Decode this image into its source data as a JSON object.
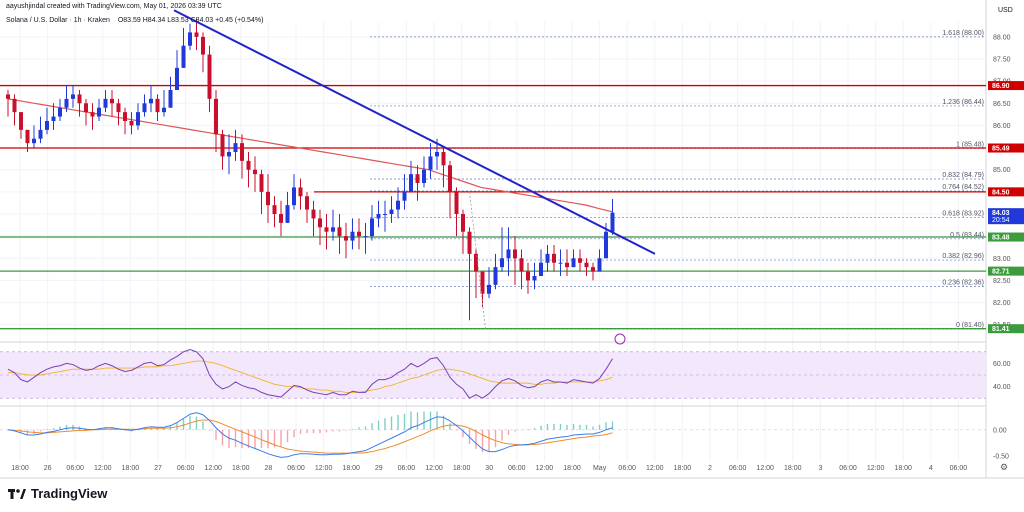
{
  "header": {
    "credit": "aayushjindal created with TradingView.com, May 01, 2026 03:39 UTC",
    "symbol": "Solana / U.S. Dollar · 1h · Kraken",
    "ohlc": "O83.59 H84.34 L83.53 C84.03 +0.45 (+0.54%)"
  },
  "brand": {
    "name": "TradingView",
    "icon": "tradingview-logo-icon"
  },
  "colors": {
    "up": "#2139d8",
    "down": "#c8102e",
    "ma": "#e05454",
    "trendline": "#2222cc",
    "support": "#3c9b3c",
    "resistance": "#d10000",
    "rsi": "#7b3fb5",
    "rsi_ma": "#f0b429",
    "macd": "#3d7de8",
    "signal": "#f08c2a",
    "hist": "#7ecfc4"
  },
  "chart_data": {
    "type": "candlestick",
    "title": "Solana / U.S. Dollar · 1h · Kraken",
    "y_axis_label": "USD",
    "ylim": [
      81.2,
      88.2
    ],
    "grid": true,
    "price_ticks": [
      "88.00",
      "87.50",
      "87.00",
      "86.50",
      "86.00",
      "85.50",
      "85.00",
      "84.50",
      "84.00",
      "83.50",
      "83.00",
      "82.50",
      "82.00",
      "81.50"
    ],
    "x_ticks": [
      "18:00",
      "26",
      "06:00",
      "12:00",
      "18:00",
      "27",
      "06:00",
      "12:00",
      "18:00",
      "28",
      "06:00",
      "12:00",
      "18:00",
      "29",
      "06:00",
      "12:00",
      "18:00",
      "30",
      "06:00",
      "12:00",
      "18:00",
      "May",
      "06:00",
      "12:00",
      "18:00",
      "2",
      "06:00",
      "12:00",
      "18:00",
      "3",
      "06:00",
      "12:00",
      "18:00",
      "4",
      "06:00"
    ],
    "closes": [
      86.6,
      86.3,
      85.9,
      85.6,
      85.7,
      85.9,
      86.1,
      86.2,
      86.4,
      86.6,
      86.7,
      86.5,
      86.3,
      86.2,
      86.4,
      86.6,
      86.5,
      86.3,
      86.1,
      86.0,
      86.3,
      86.5,
      86.6,
      86.3,
      86.4,
      86.8,
      87.3,
      87.8,
      88.1,
      88.0,
      87.6,
      86.6,
      85.8,
      85.3,
      85.4,
      85.6,
      85.2,
      85.0,
      84.9,
      84.5,
      84.2,
      84.0,
      83.8,
      84.2,
      84.6,
      84.4,
      84.1,
      83.9,
      83.7,
      83.6,
      83.7,
      83.5,
      83.4,
      83.6,
      83.5,
      83.5,
      83.9,
      84.0,
      84.0,
      84.1,
      84.3,
      84.5,
      84.9,
      84.7,
      85.0,
      85.3,
      85.4,
      85.1,
      84.5,
      84.0,
      83.6,
      83.1,
      82.7,
      82.2,
      82.4,
      82.8,
      83.0,
      83.2,
      83.0,
      82.7,
      82.5,
      82.6,
      82.9,
      83.1,
      82.9,
      82.9,
      82.8,
      83.0,
      82.9,
      82.8,
      82.7,
      83.0,
      83.6,
      84.03
    ],
    "highs": [
      86.8,
      86.7,
      86.3,
      85.9,
      86.0,
      86.2,
      86.4,
      86.5,
      86.6,
      86.9,
      86.9,
      86.8,
      86.6,
      86.5,
      86.6,
      86.8,
      86.8,
      86.6,
      86.4,
      86.3,
      86.5,
      86.7,
      86.9,
      86.7,
      86.8,
      87.1,
      87.7,
      88.2,
      88.3,
      88.4,
      88.1,
      87.8,
      86.8,
      85.9,
      85.8,
      85.9,
      85.8,
      85.4,
      85.3,
      85.0,
      84.9,
      84.4,
      84.3,
      84.5,
      84.9,
      84.8,
      84.5,
      84.3,
      84.1,
      84.0,
      84.1,
      84.0,
      83.8,
      83.9,
      83.9,
      83.8,
      84.2,
      84.3,
      84.3,
      84.4,
      84.6,
      84.9,
      85.2,
      85.1,
      85.3,
      85.6,
      85.7,
      85.5,
      85.2,
      84.6,
      84.1,
      83.7,
      83.2,
      82.7,
      82.8,
      83.1,
      83.7,
      83.7,
      83.5,
      83.2,
      82.9,
      82.9,
      83.2,
      83.3,
      83.3,
      83.2,
      83.2,
      83.2,
      83.2,
      83.0,
      82.9,
      83.2,
      83.8,
      84.34
    ],
    "lows": [
      86.2,
      86.0,
      85.7,
      85.4,
      85.5,
      85.6,
      85.8,
      85.9,
      86.1,
      86.3,
      86.4,
      86.2,
      86.0,
      85.9,
      86.1,
      86.3,
      86.2,
      86.0,
      85.8,
      85.8,
      85.9,
      86.2,
      86.3,
      86.1,
      86.2,
      86.4,
      86.9,
      87.3,
      87.7,
      87.7,
      87.2,
      86.3,
      85.4,
      85.0,
      84.9,
      85.2,
      84.8,
      84.6,
      84.5,
      84.0,
      83.8,
      83.7,
      83.5,
      83.8,
      84.1,
      84.1,
      83.8,
      83.5,
      83.3,
      83.2,
      83.4,
      83.1,
      83.0,
      83.2,
      83.2,
      83.1,
      83.4,
      83.7,
      83.6,
      83.8,
      83.9,
      84.1,
      84.5,
      84.3,
      84.6,
      84.8,
      85.0,
      84.6,
      83.9,
      83.5,
      83.1,
      81.6,
      82.1,
      81.9,
      82.1,
      82.3,
      82.7,
      82.6,
      82.4,
      82.3,
      82.2,
      82.3,
      82.6,
      82.7,
      82.7,
      82.6,
      82.6,
      82.8,
      82.7,
      82.6,
      82.5,
      82.8,
      83.4,
      83.53
    ],
    "ma": [
      86.6,
      86.55,
      86.5,
      86.45,
      86.4,
      86.35,
      86.3,
      86.25,
      86.2,
      86.15,
      86.1,
      86.05,
      86.0,
      85.95,
      85.9,
      85.85,
      85.8,
      85.75,
      85.7,
      85.65,
      85.6,
      85.55,
      85.5,
      85.45,
      85.4,
      85.35,
      85.3,
      85.25,
      85.2,
      85.15,
      85.1,
      85.05,
      85.0,
      84.9,
      84.8,
      84.7,
      84.6,
      84.55,
      84.5,
      84.45,
      84.4,
      84.35,
      84.3,
      84.25,
      84.2,
      84.12,
      84.05
    ],
    "trendline": {
      "from": [
        88.6
      ],
      "to": [
        83.1
      ]
    },
    "levels": [
      {
        "price": 86.9,
        "label": "86.90",
        "kind": "resistance"
      },
      {
        "price": 85.49,
        "label": "85.49",
        "kind": "resistance"
      },
      {
        "price": 84.5,
        "label": "84.50",
        "kind": "resistance"
      },
      {
        "price": 84.03,
        "label": "84.03",
        "kind": "current",
        "sub": "20:54"
      },
      {
        "price": 83.48,
        "label": "83.48",
        "kind": "support"
      },
      {
        "price": 82.71,
        "label": "82.71",
        "kind": "support"
      },
      {
        "price": 81.41,
        "label": "81.41",
        "kind": "support"
      }
    ],
    "fib": [
      {
        "price": 88.0,
        "label": "1.618 (88.00)"
      },
      {
        "price": 86.44,
        "label": "1.236 (86.44)"
      },
      {
        "price": 85.48,
        "label": "1 (85.48)"
      },
      {
        "price": 84.79,
        "label": "0.832 (84.79)"
      },
      {
        "price": 84.52,
        "label": "0.764 (84.52)"
      },
      {
        "price": 83.92,
        "label": "0.618 (83.92)"
      },
      {
        "price": 83.44,
        "label": "0.5 (83.44)"
      },
      {
        "price": 82.96,
        "label": "0.382 (82.96)"
      },
      {
        "price": 82.36,
        "label": "0.236 (82.36)"
      },
      {
        "price": 81.4,
        "label": "0 (81.40)"
      }
    ],
    "rsi": {
      "ticks": [
        "60.00",
        "40.00"
      ],
      "ylim": [
        25,
        75
      ],
      "values": [
        55,
        52,
        46,
        44,
        48,
        52,
        55,
        57,
        58,
        60,
        59,
        56,
        54,
        55,
        58,
        60,
        58,
        55,
        53,
        54,
        57,
        60,
        61,
        58,
        59,
        63,
        66,
        70,
        72,
        70,
        64,
        50,
        42,
        38,
        40,
        44,
        41,
        39,
        38,
        35,
        33,
        32,
        31,
        36,
        41,
        40,
        37,
        35,
        34,
        33,
        35,
        33,
        33,
        36,
        35,
        35,
        42,
        46,
        46,
        48,
        52,
        55,
        60,
        57,
        60,
        64,
        65,
        58,
        48,
        42,
        38,
        30,
        33,
        30,
        34,
        40,
        45,
        47,
        45,
        41,
        39,
        40,
        44,
        46,
        44,
        44,
        43,
        46,
        45,
        44,
        43,
        47,
        55,
        64
      ],
      "ma": [
        52,
        52,
        51,
        50,
        50,
        50,
        51,
        52,
        53,
        54,
        55,
        55,
        55,
        55,
        55,
        56,
        56,
        56,
        56,
        56,
        56,
        57,
        57,
        57,
        58,
        58,
        59,
        60,
        61,
        62,
        62,
        61,
        60,
        58,
        56,
        54,
        52,
        50,
        48,
        46,
        44,
        42,
        41,
        40,
        40,
        39,
        38,
        38,
        37,
        37,
        36,
        36,
        35,
        35,
        35,
        36,
        37,
        38,
        40,
        41,
        43,
        45,
        47,
        48,
        50,
        52,
        54,
        55,
        55,
        54,
        53,
        51,
        49,
        47,
        45,
        44,
        43,
        43,
        43,
        43,
        43,
        42,
        42,
        43,
        43,
        44,
        44,
        44,
        44,
        44,
        44,
        45,
        46,
        48
      ]
    },
    "macd": {
      "ticks": [
        "0.00",
        "-0.50"
      ],
      "ylim": [
        -0.62,
        0.42
      ],
      "macd": [
        0.0,
        -0.02,
        -0.06,
        -0.1,
        -0.1,
        -0.08,
        -0.05,
        -0.03,
        0.0,
        0.03,
        0.04,
        0.03,
        0.01,
        0.0,
        0.02,
        0.04,
        0.04,
        0.02,
        0.0,
        -0.01,
        0.01,
        0.04,
        0.06,
        0.05,
        0.05,
        0.08,
        0.14,
        0.22,
        0.3,
        0.33,
        0.29,
        0.18,
        0.04,
        -0.08,
        -0.16,
        -0.2,
        -0.26,
        -0.31,
        -0.36,
        -0.41,
        -0.46,
        -0.5,
        -0.53,
        -0.52,
        -0.48,
        -0.46,
        -0.46,
        -0.47,
        -0.48,
        -0.48,
        -0.47,
        -0.47,
        -0.46,
        -0.44,
        -0.42,
        -0.4,
        -0.34,
        -0.28,
        -0.22,
        -0.16,
        -0.1,
        -0.04,
        0.04,
        0.08,
        0.14,
        0.2,
        0.25,
        0.24,
        0.17,
        0.08,
        -0.02,
        -0.14,
        -0.26,
        -0.37,
        -0.42,
        -0.42,
        -0.38,
        -0.33,
        -0.3,
        -0.29,
        -0.28,
        -0.26,
        -0.22,
        -0.18,
        -0.16,
        -0.14,
        -0.13,
        -0.1,
        -0.09,
        -0.08,
        -0.08,
        -0.05,
        0.0,
        0.04
      ],
      "signal": [
        0.0,
        -0.01,
        -0.02,
        -0.04,
        -0.05,
        -0.06,
        -0.06,
        -0.05,
        -0.04,
        -0.03,
        -0.02,
        -0.01,
        -0.01,
        0.0,
        0.0,
        0.01,
        0.01,
        0.01,
        0.01,
        0.01,
        0.01,
        0.02,
        0.03,
        0.03,
        0.03,
        0.04,
        0.06,
        0.09,
        0.13,
        0.17,
        0.19,
        0.19,
        0.16,
        0.11,
        0.06,
        0.01,
        -0.04,
        -0.09,
        -0.14,
        -0.19,
        -0.24,
        -0.29,
        -0.33,
        -0.37,
        -0.39,
        -0.41,
        -0.42,
        -0.43,
        -0.44,
        -0.45,
        -0.45,
        -0.45,
        -0.45,
        -0.45,
        -0.45,
        -0.44,
        -0.42,
        -0.39,
        -0.36,
        -0.32,
        -0.28,
        -0.23,
        -0.18,
        -0.13,
        -0.08,
        -0.02,
        0.03,
        0.07,
        0.09,
        0.09,
        0.07,
        0.03,
        -0.03,
        -0.1,
        -0.16,
        -0.21,
        -0.25,
        -0.27,
        -0.28,
        -0.29,
        -0.29,
        -0.28,
        -0.27,
        -0.25,
        -0.23,
        -0.21,
        -0.19,
        -0.17,
        -0.15,
        -0.14,
        -0.12,
        -0.11,
        -0.09,
        -0.06
      ]
    }
  }
}
